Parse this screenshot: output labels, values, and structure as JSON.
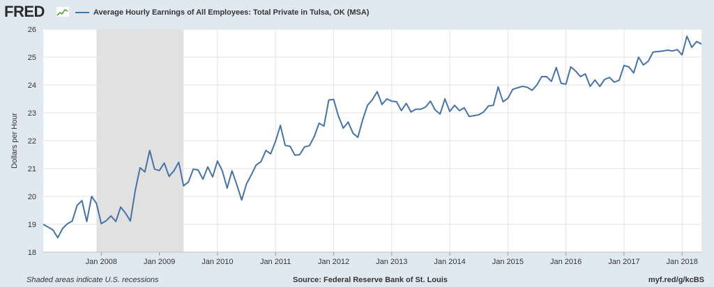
{
  "header": {
    "logo_text": "FRED",
    "logo_icon": "fred-chart-icon",
    "series_label": "Average Hourly Earnings of All Employees: Total Private in Tulsa, OK (MSA)"
  },
  "footer": {
    "recession_note": "Shaded areas indicate U.S. recessions",
    "source": "Source: Federal Reserve Bank of St. Louis",
    "short_url": "myf.red/g/kcBS"
  },
  "colors": {
    "line": "#4572a7",
    "plot_bg": "#ffffff",
    "recession": "#e1e1e1",
    "page_bg": "#e1e9f0"
  },
  "chart_data": {
    "type": "line",
    "title": "",
    "xlabel": "",
    "ylabel": "Dollars per Hour",
    "ylim": [
      18,
      26
    ],
    "yticks": [
      "18",
      "19",
      "20",
      "21",
      "22",
      "23",
      "24",
      "25",
      "26"
    ],
    "xticks": [
      "Jan 2008",
      "Jan 2009",
      "Jan 2010",
      "Jan 2011",
      "Jan 2012",
      "Jan 2013",
      "Jan 2014",
      "Jan 2015",
      "Jan 2016",
      "Jan 2017",
      "Jan 2018"
    ],
    "grid": true,
    "x_start": "2007-01",
    "x_end": "2018-05",
    "recessions": [
      {
        "start": "2007-12",
        "end": "2009-06"
      }
    ],
    "series": [
      {
        "name": "Average Hourly Earnings of All Employees: Total Private in Tulsa, OK (MSA)",
        "start": "2007-01",
        "frequency": "monthly",
        "values": [
          19.0,
          18.9,
          18.8,
          18.52,
          18.85,
          19.02,
          19.12,
          19.68,
          19.85,
          19.1,
          20.0,
          19.75,
          19.02,
          19.13,
          19.3,
          19.1,
          19.62,
          19.4,
          19.12,
          20.2,
          21.03,
          20.88,
          21.65,
          20.98,
          20.93,
          21.2,
          20.72,
          20.92,
          21.23,
          20.38,
          20.52,
          20.98,
          20.95,
          20.62,
          21.06,
          20.7,
          21.27,
          20.92,
          20.3,
          20.92,
          20.42,
          19.87,
          20.45,
          20.78,
          21.13,
          21.25,
          21.65,
          21.53,
          21.98,
          22.55,
          21.83,
          21.8,
          21.48,
          21.5,
          21.78,
          21.82,
          22.15,
          22.63,
          22.52,
          23.46,
          23.48,
          22.88,
          22.45,
          22.67,
          22.27,
          22.12,
          22.75,
          23.27,
          23.47,
          23.76,
          23.3,
          23.5,
          23.42,
          23.4,
          23.08,
          23.34,
          23.03,
          23.13,
          23.13,
          23.21,
          23.42,
          23.1,
          22.96,
          23.5,
          23.05,
          23.27,
          23.08,
          23.18,
          22.87,
          22.9,
          22.93,
          23.03,
          23.25,
          23.27,
          23.93,
          23.4,
          23.52,
          23.84,
          23.9,
          23.95,
          23.92,
          23.81,
          24.0,
          24.3,
          24.3,
          24.13,
          24.63,
          24.06,
          24.03,
          24.65,
          24.5,
          24.3,
          24.4,
          23.95,
          24.18,
          23.95,
          24.2,
          24.27,
          24.1,
          24.17,
          24.7,
          24.65,
          24.43,
          25.0,
          24.72,
          24.85,
          25.18,
          25.2,
          25.22,
          25.25,
          25.22,
          25.27,
          25.08,
          25.75,
          25.35,
          25.56,
          25.47
        ]
      }
    ]
  }
}
